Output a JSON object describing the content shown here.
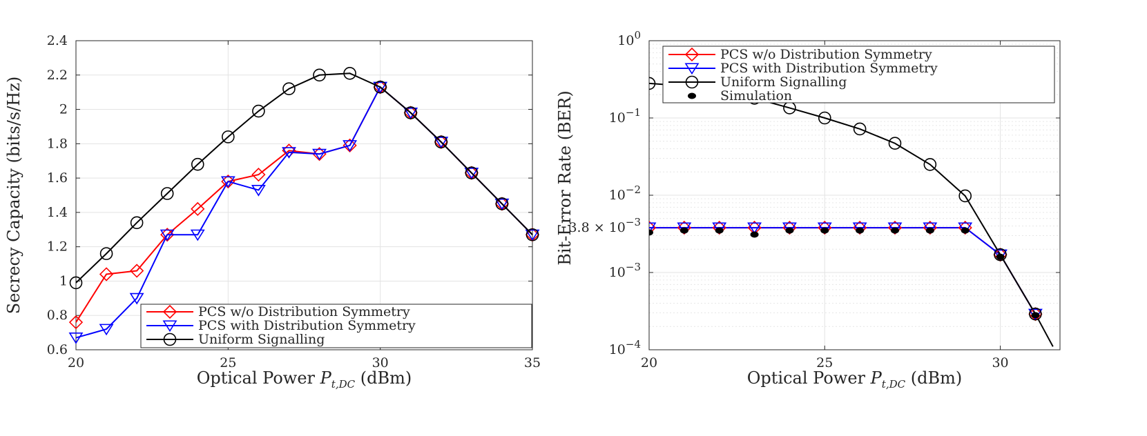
{
  "chart_data": [
    {
      "type": "line",
      "title": "",
      "xlabel": "Optical Power",
      "xlabel_symbol": "P",
      "xlabel_subscript": "t,DC",
      "xlabel_unit": "(dBm)",
      "ylabel": "Secrecy Capacity (bits/s/Hz)",
      "xlim": [
        20,
        35
      ],
      "ylim": [
        0.6,
        2.4
      ],
      "grid": true,
      "legend_position": "bottom-right",
      "xticks": [
        "20",
        "25",
        "30",
        "35"
      ],
      "yticks": [
        "0.6",
        "0.8",
        "1",
        "1.2",
        "1.4",
        "1.6",
        "1.8",
        "2",
        "2.2",
        "2.4"
      ],
      "x": [
        20,
        21,
        22,
        23,
        24,
        25,
        26,
        27,
        28,
        29,
        30,
        31,
        32,
        33,
        34,
        35
      ],
      "series": [
        {
          "name": "PCS w/o Distribution Symmetry",
          "color": "#ff0000",
          "marker": "diamond",
          "values": [
            0.76,
            1.04,
            1.06,
            1.27,
            1.42,
            1.58,
            1.62,
            1.76,
            1.74,
            1.79,
            2.13,
            1.98,
            1.81,
            1.63,
            1.45,
            1.27
          ]
        },
        {
          "name": "PCS with Distribution Symmetry",
          "color": "#0000ff",
          "marker": "triangle-down",
          "values": [
            0.67,
            0.72,
            0.9,
            1.27,
            1.27,
            1.58,
            1.53,
            1.75,
            1.74,
            1.79,
            2.13,
            1.98,
            1.81,
            1.63,
            1.45,
            1.27
          ]
        },
        {
          "name": "Uniform Signalling",
          "color": "#000000",
          "marker": "circle",
          "values": [
            0.99,
            1.16,
            1.34,
            1.51,
            1.68,
            1.84,
            1.99,
            2.12,
            2.2,
            2.21,
            2.13,
            1.98,
            1.81,
            1.63,
            1.45,
            1.27
          ]
        }
      ]
    },
    {
      "type": "line",
      "title": "",
      "xlabel": "Optical Power",
      "xlabel_symbol": "P",
      "xlabel_subscript": "t,DC",
      "xlabel_unit": "(dBm)",
      "ylabel": "Bit-Error Rate (BER)",
      "yscale": "log",
      "xlim": [
        20,
        31.7
      ],
      "ylim": [
        0.0001,
        1
      ],
      "grid": true,
      "legend_position": "top-left",
      "xticks": [
        "20",
        "25",
        "30"
      ],
      "yticks": [
        {
          "base": "10",
          "exp": "0"
        },
        {
          "base": "10",
          "exp": "−1"
        },
        {
          "base": "10",
          "exp": "−2"
        },
        {
          "base": "10",
          "exp": "−3"
        },
        {
          "base": "10",
          "exp": "−4"
        }
      ],
      "extra_ytick": {
        "prefix": "3.8 ×",
        "base": "10",
        "exp": "−3",
        "value": 0.0038
      },
      "x": [
        20,
        21,
        22,
        23,
        24,
        25,
        26,
        27,
        28,
        29,
        30,
        31
      ],
      "series": [
        {
          "name": "PCS w/o Distribution Symmetry",
          "color": "#ff0000",
          "marker": "diamond",
          "values": [
            0.0038,
            0.0038,
            0.0038,
            0.0038,
            0.0038,
            0.0038,
            0.0038,
            0.0038,
            0.0038,
            0.0038,
            0.0017,
            0.00029
          ]
        },
        {
          "name": "PCS with Distribution Symmetry",
          "color": "#0000ff",
          "marker": "triangle-down",
          "values": [
            0.0038,
            0.0038,
            0.0038,
            0.0038,
            0.0038,
            0.0038,
            0.0038,
            0.0038,
            0.0038,
            0.0038,
            0.0017,
            0.00029
          ]
        },
        {
          "name": "Uniform Signalling",
          "color": "#000000",
          "marker": "circle",
          "x": [
            20,
            21,
            22,
            23,
            24,
            25,
            26,
            27,
            28,
            29,
            30,
            31,
            31.5
          ],
          "values": [
            0.28,
            0.26,
            0.23,
            0.18,
            0.135,
            0.1,
            0.072,
            0.047,
            0.025,
            0.0098,
            0.0017,
            0.00029,
            0.00011
          ]
        },
        {
          "name": "Simulation",
          "color": "#000000",
          "marker": "dot",
          "values": [
            0.0033,
            0.0035,
            0.0035,
            0.0031,
            0.0035,
            0.0035,
            0.0035,
            0.0035,
            0.0035,
            0.0035,
            0.0016,
            0.00028
          ]
        }
      ]
    }
  ]
}
